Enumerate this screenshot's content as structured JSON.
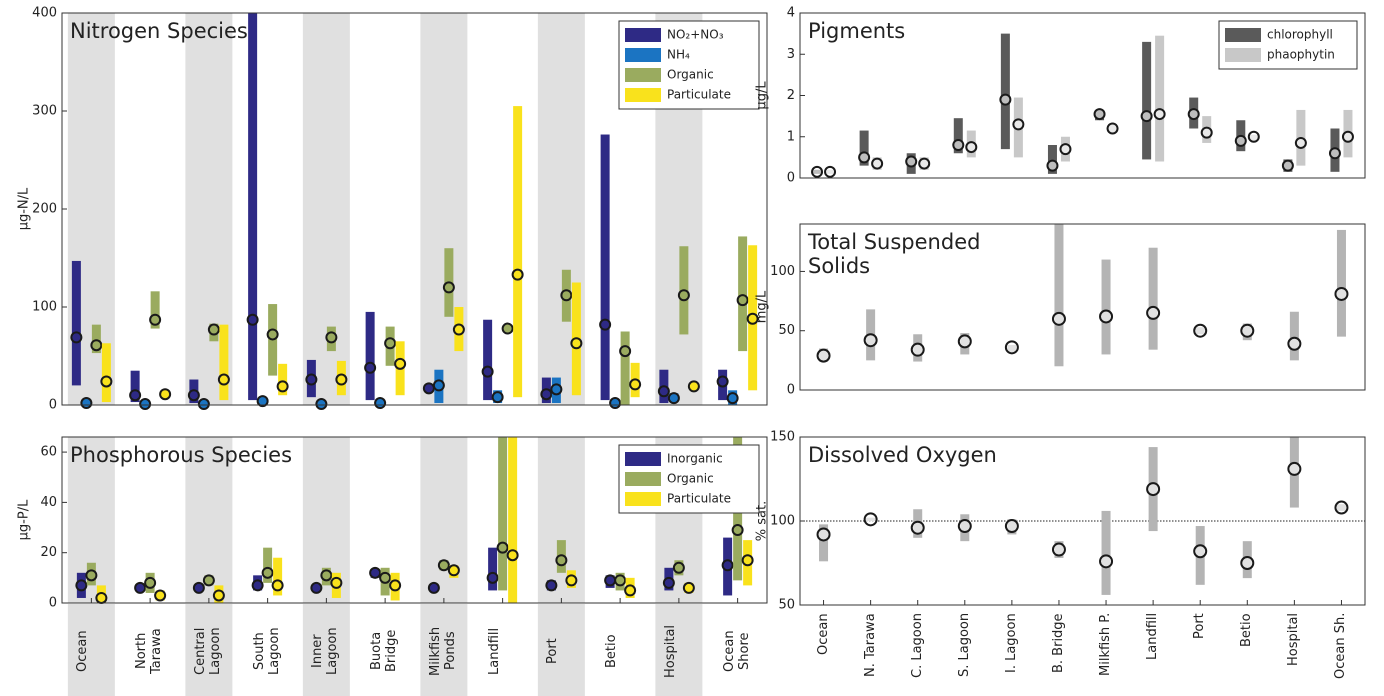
{
  "chart_data": [
    {
      "type": "range",
      "title": "Nitrogen Species",
      "ylabel": "μg-N/L",
      "ylim": [
        0,
        400
      ],
      "yticks": [
        0,
        100,
        200,
        300,
        400
      ],
      "legend": "upper right",
      "series": [
        {
          "name": "NO₂+NO₃",
          "color": "#2e2a85",
          "values": [
            69,
            10,
            10,
            87,
            26,
            38,
            17,
            34,
            11,
            82,
            14,
            24
          ],
          "low": [
            20,
            3,
            2,
            5,
            8,
            5,
            14,
            5,
            2,
            5,
            2,
            5
          ],
          "high": [
            147,
            35,
            26,
            400,
            46,
            95,
            20,
            87,
            28,
            276,
            36,
            36
          ]
        },
        {
          "name": "NH₄",
          "color": "#1b74c2",
          "values": [
            2,
            1,
            1,
            4,
            1,
            2,
            20,
            8,
            16,
            2,
            7,
            7
          ],
          "low": [
            0,
            0,
            0,
            2,
            0,
            0,
            2,
            2,
            2,
            1,
            3,
            0
          ],
          "high": [
            4,
            2,
            2,
            6,
            2,
            3,
            36,
            15,
            28,
            4,
            12,
            15
          ]
        },
        {
          "name": "Organic",
          "color": "#9aab5f",
          "values": [
            61,
            87,
            77,
            72,
            69,
            63,
            120,
            78,
            112,
            55,
            112,
            107
          ],
          "low": [
            53,
            78,
            65,
            30,
            55,
            40,
            90,
            75,
            85,
            0,
            72,
            55
          ],
          "high": [
            82,
            116,
            83,
            103,
            80,
            80,
            160,
            80,
            138,
            75,
            162,
            172
          ]
        },
        {
          "name": "Particulate",
          "color": "#f9e21c",
          "values": [
            24,
            11,
            26,
            19,
            26,
            42,
            77,
            133,
            63,
            21,
            19,
            88
          ],
          "low": [
            3,
            8,
            5,
            10,
            10,
            10,
            55,
            8,
            10,
            8,
            15,
            15
          ],
          "high": [
            63,
            15,
            82,
            42,
            45,
            65,
            100,
            305,
            125,
            43,
            22,
            163
          ]
        }
      ]
    },
    {
      "type": "range",
      "title": "Phosphorous Species",
      "ylabel": "μg-P/L",
      "ylim": [
        0,
        66
      ],
      "yticks": [
        0,
        20,
        40,
        60
      ],
      "legend": "upper right",
      "categories": [
        "Ocean",
        "North Tarawa",
        "Central Lagoon",
        "South Lagoon",
        "Inner Lagoon",
        "Buota Bridge",
        "Milkfish Ponds",
        "Landfill",
        "Port",
        "Betio",
        "Hospital",
        "Ocean Shore"
      ],
      "series": [
        {
          "name": "Inorganic",
          "color": "#2e2a85",
          "values": [
            7,
            6,
            6,
            7,
            6,
            12,
            6,
            10,
            7,
            9,
            8,
            15
          ],
          "low": [
            2,
            5,
            5,
            5,
            5,
            10,
            5,
            5,
            5,
            6,
            5,
            3
          ],
          "high": [
            12,
            7,
            7,
            11,
            7,
            13,
            7,
            22,
            9,
            11,
            14,
            26
          ]
        },
        {
          "name": "Organic",
          "color": "#9aab5f",
          "values": [
            11,
            8,
            9,
            12,
            11,
            10,
            15,
            22,
            17,
            9,
            14,
            29
          ],
          "low": [
            7,
            4,
            7,
            8,
            7,
            3,
            13,
            5,
            12,
            5,
            11,
            9
          ],
          "high": [
            16,
            12,
            11,
            22,
            14,
            14,
            17,
            66,
            25,
            12,
            17,
            66
          ]
        },
        {
          "name": "Particulate",
          "color": "#f9e21c",
          "values": [
            2,
            3,
            3,
            7,
            8,
            7,
            13,
            19,
            9,
            5,
            6,
            17
          ],
          "low": [
            0,
            1,
            0,
            3,
            2,
            1,
            10,
            0,
            6,
            2,
            4,
            7
          ],
          "high": [
            7,
            5,
            7,
            18,
            12,
            12,
            15,
            66,
            13,
            10,
            8,
            25
          ]
        }
      ]
    },
    {
      "type": "range",
      "title": "Pigments",
      "ylabel": "μg/L",
      "ylim": [
        0,
        4
      ],
      "yticks": [
        0,
        1,
        2,
        3,
        4
      ],
      "legend": "upper right",
      "series": [
        {
          "name": "chlorophyll",
          "color": "#5a5a5a",
          "values": [
            0.15,
            0.5,
            0.4,
            0.8,
            1.9,
            0.3,
            1.55,
            1.5,
            1.55,
            0.9,
            0.3,
            0.6
          ],
          "low": [
            0.1,
            0.3,
            0.1,
            0.6,
            0.7,
            0.1,
            1.4,
            0.45,
            1.2,
            0.65,
            0.15,
            0.15
          ],
          "high": [
            0.2,
            1.15,
            0.6,
            1.45,
            3.5,
            0.8,
            1.65,
            3.3,
            1.95,
            1.4,
            0.45,
            1.2
          ]
        },
        {
          "name": "phaophytin",
          "color": "#c8c8c8",
          "values": [
            0.15,
            0.35,
            0.35,
            0.75,
            1.3,
            0.7,
            1.2,
            1.55,
            1.1,
            1.0,
            0.85,
            1.0
          ],
          "low": [
            0.1,
            0.2,
            0.2,
            0.5,
            0.5,
            0.4,
            1.1,
            0.4,
            0.85,
            0.9,
            0.3,
            0.5
          ],
          "high": [
            0.2,
            0.5,
            0.5,
            1.15,
            1.95,
            1.0,
            1.3,
            3.45,
            1.5,
            1.05,
            1.65,
            1.65
          ]
        }
      ]
    },
    {
      "type": "range",
      "title": "Total Suspended Solids",
      "ylabel": "mg/L",
      "ylim": [
        0,
        140
      ],
      "yticks": [
        0,
        50,
        100
      ],
      "color": "#b4b4b4",
      "values": [
        29,
        42,
        34,
        41,
        36,
        60,
        62,
        65,
        50,
        50,
        39,
        81
      ],
      "low": [
        24,
        25,
        24,
        30,
        32,
        20,
        30,
        34,
        47,
        42,
        25,
        45
      ],
      "high": [
        35,
        68,
        47,
        48,
        38,
        140,
        110,
        120,
        53,
        56,
        66,
        135
      ]
    },
    {
      "type": "range",
      "title": "Dissolved Oxygen",
      "ylabel": "% sat.",
      "ylim": [
        50,
        150
      ],
      "yticks": [
        50,
        100,
        150
      ],
      "color": "#b4b4b4",
      "hline": 100,
      "categories": [
        "Ocean",
        "N. Tarawa",
        "C. Lagoon",
        "S. Lagoon",
        "I. Lagoon",
        "B. Bridge",
        "Milkfish P.",
        "Landfill",
        "Port",
        "Betio",
        "Hospital",
        "Ocean Sh."
      ],
      "values": [
        92,
        101,
        96,
        97,
        97,
        83,
        76,
        119,
        82,
        75,
        131,
        108
      ],
      "low": [
        76,
        100,
        90,
        88,
        92,
        78,
        56,
        94,
        62,
        66,
        108,
        106
      ],
      "high": [
        98,
        102,
        107,
        104,
        101,
        88,
        106,
        144,
        97,
        88,
        150,
        110
      ]
    }
  ]
}
